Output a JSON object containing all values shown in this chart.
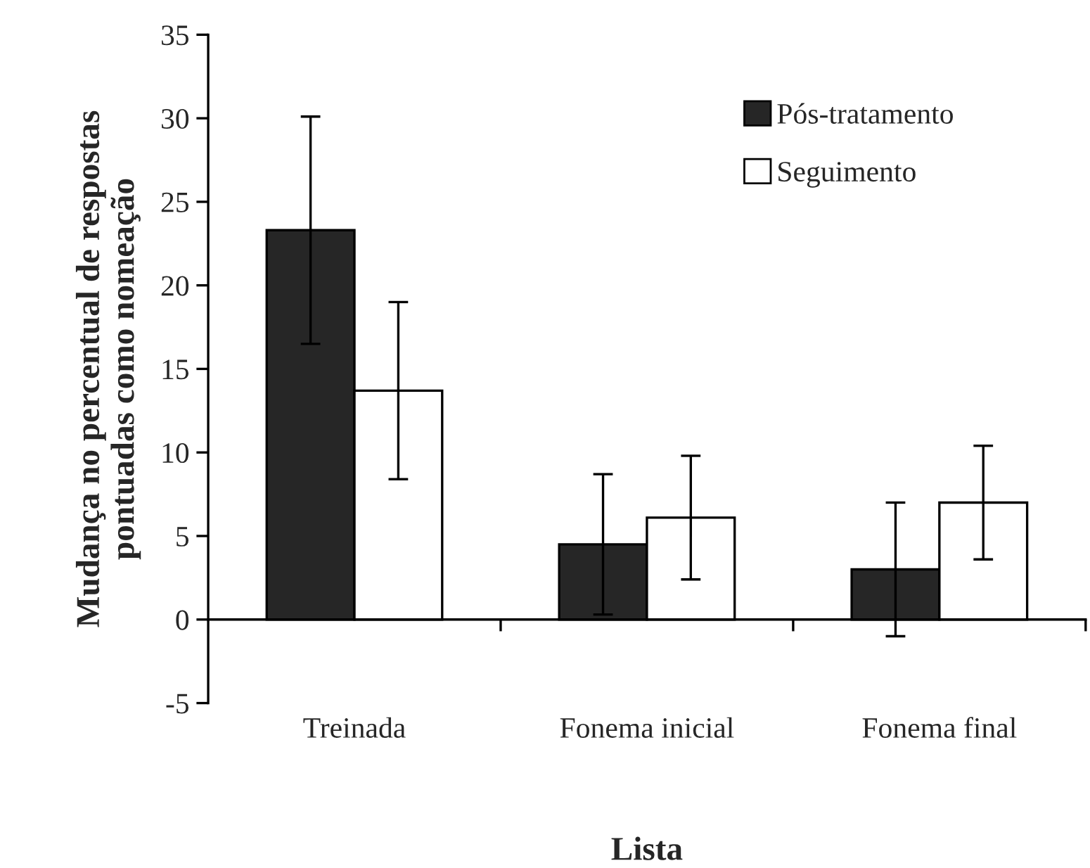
{
  "chart_data": {
    "type": "bar",
    "xlabel": "Lista",
    "ylabel": "Mudança no percentual de respostas\npontuadas como nomeação",
    "categories": [
      "Treinada",
      "Fonema inicial",
      "Fonema final"
    ],
    "series": [
      {
        "name": "Pós-tratamento",
        "color": "#262626",
        "values": [
          23.3,
          4.5,
          3.0
        ],
        "errors": [
          6.8,
          4.2,
          4.0
        ]
      },
      {
        "name": "Seguimento",
        "color": "#ffffff",
        "values": [
          13.7,
          6.1,
          7.0
        ],
        "errors": [
          5.3,
          3.7,
          3.4
        ]
      }
    ],
    "ylim": [
      -5,
      35
    ],
    "yticks": [
      -5,
      0,
      5,
      10,
      15,
      20,
      25,
      30,
      35
    ],
    "legend": "top right"
  }
}
